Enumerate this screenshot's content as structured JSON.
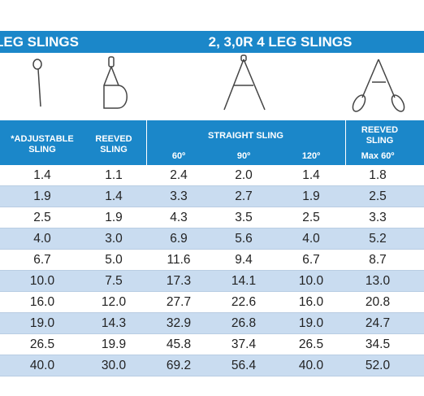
{
  "header": {
    "left": "LEG SLINGS",
    "right": "2, 3,0R 4 LEG SLINGS"
  },
  "table": {
    "columns": {
      "adjustable": "*ADJUSTABLE SLING",
      "reeved": "REEVED SLING",
      "straight": "STRAIGHT SLING",
      "angles": [
        "60º",
        "90º",
        "120º"
      ],
      "reeved2": "REEVED SLING",
      "max": "Max 60º"
    },
    "rows": [
      [
        "1.4",
        "1.1",
        "2.4",
        "2.0",
        "1.4",
        "1.8"
      ],
      [
        "1.9",
        "1.4",
        "3.3",
        "2.7",
        "1.9",
        "2.5"
      ],
      [
        "2.5",
        "1.9",
        "4.3",
        "3.5",
        "2.5",
        "3.3"
      ],
      [
        "4.0",
        "3.0",
        "6.9",
        "5.6",
        "4.0",
        "5.2"
      ],
      [
        "6.7",
        "5.0",
        "11.6",
        "9.4",
        "6.7",
        "8.7"
      ],
      [
        "10.0",
        "7.5",
        "17.3",
        "14.1",
        "10.0",
        "13.0"
      ],
      [
        "16.0",
        "12.0",
        "27.7",
        "22.6",
        "16.0",
        "20.8"
      ],
      [
        "19.0",
        "14.3",
        "32.9",
        "26.8",
        "19.0",
        "24.7"
      ],
      [
        "26.5",
        "19.9",
        "45.8",
        "37.4",
        "26.5",
        "34.5"
      ],
      [
        "40.0",
        "30.0",
        "69.2",
        "56.4",
        "40.0",
        "52.0"
      ]
    ]
  }
}
